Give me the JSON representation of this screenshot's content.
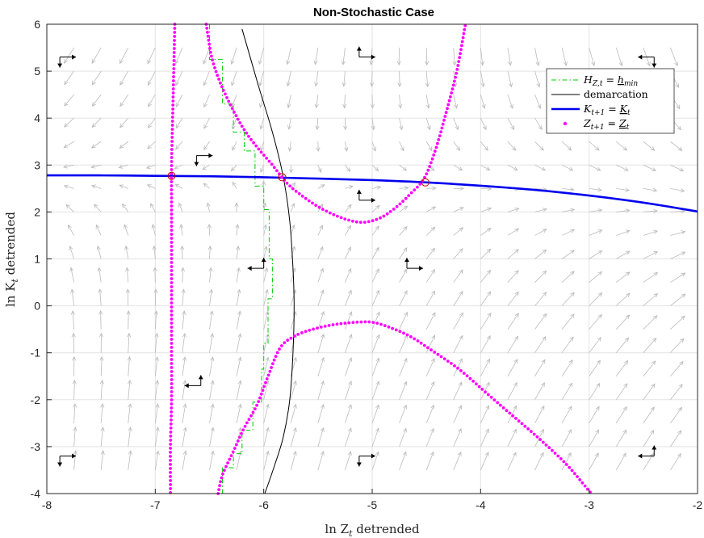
{
  "chart_data": {
    "type": "line",
    "title": "Non-Stochastic Case",
    "xlabel": "ln Z_t detrended",
    "ylabel": "ln K_t detrended",
    "xlim": [
      -8,
      -2
    ],
    "ylim": [
      -4,
      6
    ],
    "xticks": [
      "-8",
      "-7",
      "-6",
      "-5",
      "-4",
      "-3",
      "-2"
    ],
    "yticks": [
      "-4",
      "-3",
      "-2",
      "-1",
      "0",
      "1",
      "2",
      "3",
      "4",
      "5",
      "6"
    ],
    "grid": true,
    "legend_position": "top-right",
    "colors": {
      "h_min": "#00cc00",
      "demarcation": "#000000",
      "k_null": "#0000ee",
      "z_null": "#ff00ff",
      "field": "#bbbbbb",
      "steady": "#cc0000"
    },
    "series": [
      {
        "name": "H_{Z,t} = h_min",
        "legend_label": "H_Z,t = h_min",
        "style": "dash-dot",
        "x": [
          -6.5,
          -6.5,
          -6.38,
          -6.38,
          -6.28,
          -6.28,
          -6.18,
          -6.18,
          -6.08,
          -6.08,
          -6.0,
          -6.0,
          -5.95,
          -5.95,
          -5.92,
          -5.92,
          -5.96,
          -5.96,
          -6.0,
          -6.0,
          -6.02,
          -6.02,
          -6.1,
          -6.1,
          -6.2,
          -6.2,
          -6.28,
          -6.28,
          -6.38,
          -6.38,
          -6.5
        ],
        "y": [
          6.0,
          5.25,
          5.25,
          4.3,
          4.3,
          3.7,
          3.7,
          3.3,
          3.3,
          2.55,
          2.55,
          2.05,
          2.05,
          1.0,
          1.0,
          0.15,
          0.15,
          -0.8,
          -0.8,
          -1.35,
          -1.35,
          -2.05,
          -2.05,
          -2.65,
          -2.65,
          -3.15,
          -3.15,
          -3.45,
          -3.45,
          -4.0,
          -4.0
        ]
      },
      {
        "name": "demarcation",
        "legend_label": "demarcation",
        "style": "solid",
        "x": [
          -6.2,
          -6.05,
          -5.92,
          -5.82,
          -5.76,
          -5.73,
          -5.72,
          -5.73,
          -5.76,
          -5.82,
          -5.9,
          -5.99
        ],
        "y": [
          5.9,
          4.7,
          3.7,
          2.75,
          1.8,
          0.8,
          0.0,
          -1.0,
          -2.0,
          -2.8,
          -3.4,
          -4.0
        ]
      },
      {
        "name": "K_{t+1} = K_t",
        "legend_label": "K_t+1 = K_t",
        "style": "solid",
        "x": [
          -8,
          -7.5,
          -7.0,
          -6.5,
          -6.0,
          -5.5,
          -5.0,
          -4.5,
          -4.0,
          -3.5,
          -3.0,
          -2.5,
          -2.0
        ],
        "y": [
          2.78,
          2.78,
          2.77,
          2.76,
          2.74,
          2.71,
          2.68,
          2.63,
          2.56,
          2.47,
          2.35,
          2.2,
          2.01
        ]
      },
      {
        "name": "Z_{t+1} = Z_t",
        "legend_label": "Z_t+1 = Z_t",
        "style": "dotted-points",
        "segments": [
          {
            "x": [
              -6.82,
              -6.83,
              -6.84,
              -6.85,
              -6.85,
              -6.85,
              -6.85,
              -6.85,
              -6.85,
              -6.86,
              -6.86
            ],
            "y": [
              6.0,
              5.0,
              4.0,
              3.0,
              2.0,
              1.0,
              0.0,
              -1.0,
              -2.0,
              -3.0,
              -4.0
            ]
          },
          {
            "x": [
              -6.53,
              -6.48,
              -6.4,
              -6.3,
              -6.18,
              -6.05,
              -5.92,
              -5.78,
              -5.62,
              -5.45,
              -5.25,
              -5.08,
              -4.92,
              -4.78,
              -4.65,
              -4.52,
              -4.42,
              -4.32,
              -4.22,
              -4.14
            ],
            "y": [
              6.0,
              5.3,
              4.75,
              4.25,
              3.75,
              3.35,
              3.0,
              2.6,
              2.3,
              2.05,
              1.85,
              1.78,
              1.88,
              2.1,
              2.38,
              2.72,
              3.3,
              4.1,
              5.0,
              6.0
            ]
          },
          {
            "x": [
              -6.42,
              -6.38,
              -6.28,
              -6.18,
              -6.06,
              -5.96,
              -5.85,
              -5.72,
              -5.55,
              -5.35,
              -5.15,
              -5.0,
              -4.85,
              -4.65,
              -4.45,
              -4.2,
              -3.95,
              -3.7,
              -3.45,
              -3.2,
              -2.98
            ],
            "y": [
              -4.0,
              -3.6,
              -3.1,
              -2.6,
              -2.1,
              -1.5,
              -0.9,
              -0.65,
              -0.5,
              -0.4,
              -0.35,
              -0.35,
              -0.45,
              -0.65,
              -0.95,
              -1.35,
              -1.85,
              -2.35,
              -2.85,
              -3.4,
              -4.0
            ]
          }
        ]
      }
    ],
    "steady_states": {
      "x": [
        -6.85,
        -5.83,
        -4.51
      ],
      "y": [
        2.77,
        2.74,
        2.63
      ]
    },
    "phase_arrows": [
      {
        "x": -7.88,
        "y": 5.3,
        "h": 1,
        "v": -1
      },
      {
        "x": -5.12,
        "y": 5.3,
        "h": 1,
        "v": 1
      },
      {
        "x": -2.4,
        "y": 5.3,
        "h": -1,
        "v": -1
      },
      {
        "x": -6.62,
        "y": 3.2,
        "h": 1,
        "v": -1
      },
      {
        "x": -5.12,
        "y": 2.25,
        "h": 1,
        "v": 1
      },
      {
        "x": -6.0,
        "y": 0.8,
        "h": -1,
        "v": 1
      },
      {
        "x": -4.68,
        "y": 0.8,
        "h": 1,
        "v": 1
      },
      {
        "x": -6.58,
        "y": -1.7,
        "h": -1,
        "v": 1
      },
      {
        "x": -7.88,
        "y": -3.2,
        "h": 1,
        "v": -1
      },
      {
        "x": -5.12,
        "y": -3.2,
        "h": 1,
        "v": -1
      },
      {
        "x": -2.4,
        "y": -3.2,
        "h": -1,
        "v": 1
      }
    ],
    "vector_field": {
      "x_start": -8,
      "x_end": -2,
      "x_step": 0.25,
      "y_start": -4,
      "y_end": 6,
      "y_step": 0.5
    }
  }
}
